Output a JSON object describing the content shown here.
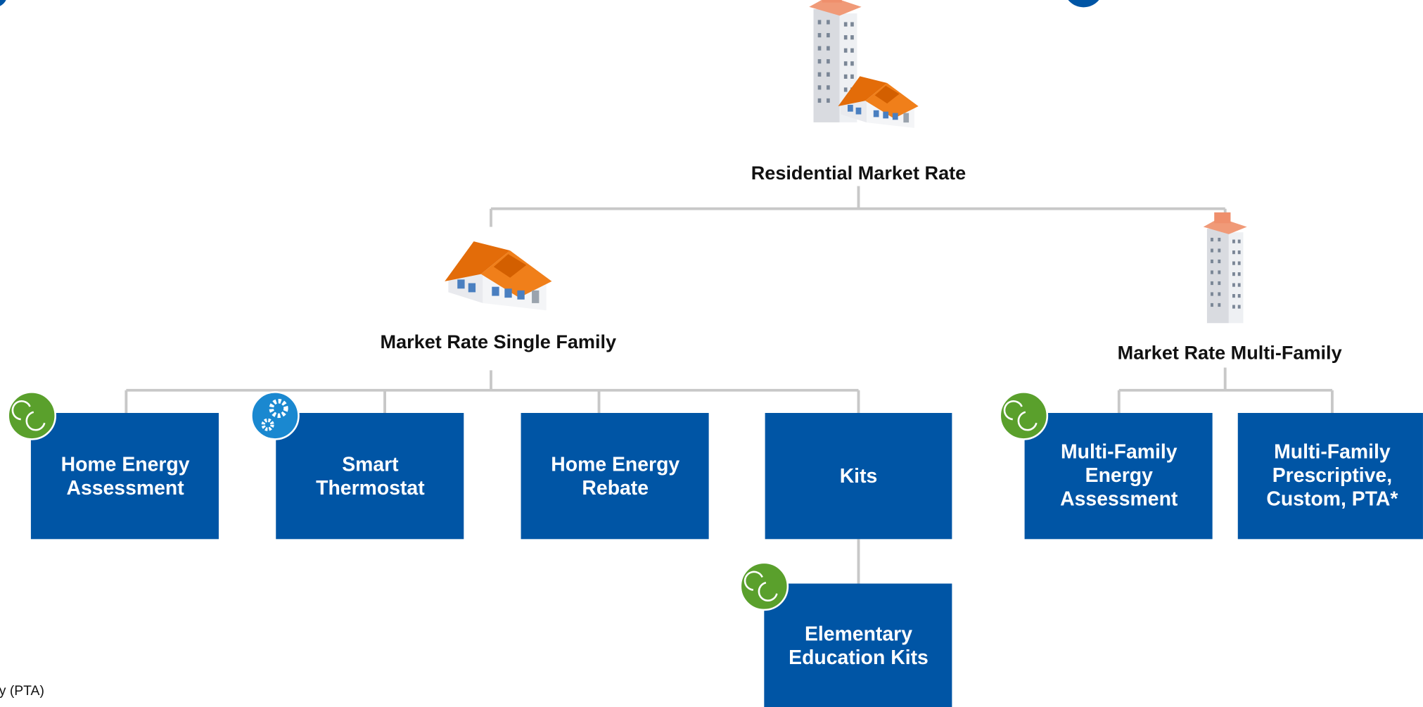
{
  "root": {
    "label": "Residential Market Rate"
  },
  "groups": [
    {
      "label": "Market Rate Single Family",
      "programs": [
        {
          "lines": [
            "Home Energy",
            "Assessment"
          ]
        },
        {
          "lines": [
            "Smart",
            "Thermostat"
          ]
        },
        {
          "lines": [
            "Home Energy",
            "Rebate"
          ]
        },
        {
          "lines": [
            "Kits"
          ],
          "children": [
            {
              "lines": [
                "Elementary",
                "Education Kits"
              ]
            }
          ]
        }
      ]
    },
    {
      "label": "Market Rate Multi-Family",
      "programs": [
        {
          "lines": [
            "Multi-Family",
            "Energy",
            "Assessment"
          ]
        },
        {
          "lines": [
            "Multi-Family",
            "Prescriptive,",
            "Custom, PTA*"
          ]
        }
      ]
    }
  ],
  "footnote": "y (PTA)"
}
